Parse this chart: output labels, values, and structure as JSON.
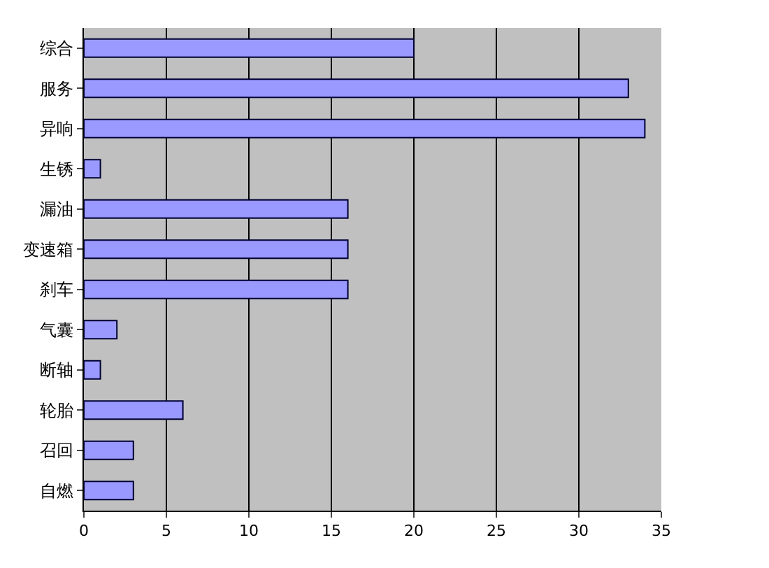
{
  "chart_data": {
    "type": "bar",
    "orientation": "horizontal",
    "categories": [
      "综合",
      "服务",
      "异响",
      "生锈",
      "漏油",
      "变速箱",
      "刹车",
      "气囊",
      "断轴",
      "轮胎",
      "召回",
      "自燃"
    ],
    "values": [
      20,
      33,
      34,
      1,
      16,
      16,
      16,
      2,
      1,
      6,
      3,
      3
    ],
    "color": "#9999ff",
    "xlim": [
      0,
      35
    ],
    "xticks": [
      0,
      5,
      10,
      15,
      20,
      25,
      30,
      35
    ],
    "grid": "x"
  }
}
